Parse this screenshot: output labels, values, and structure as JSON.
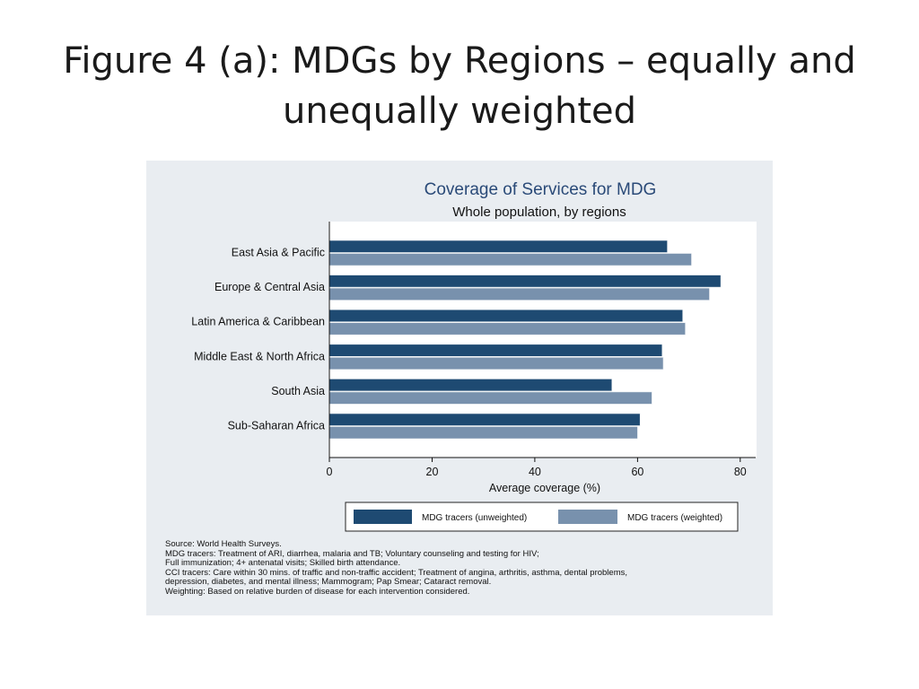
{
  "slide": {
    "title_line1": "Figure 4 (a): MDGs by Regions – equally and",
    "title_line2": "unequally weighted"
  },
  "chart_data": {
    "type": "bar",
    "orientation": "horizontal",
    "title": "Coverage of Services for MDG",
    "subtitle": "Whole population, by regions",
    "categories": [
      "East Asia & Pacific",
      "Europe & Central Asia",
      "Latin America & Caribbean",
      "Middle East & North Africa",
      "South Asia",
      "Sub-Saharan Africa"
    ],
    "series": [
      {
        "name": "MDG tracers (unweighted)",
        "color": "#1e4a72",
        "values": [
          65.8,
          76.2,
          68.8,
          64.8,
          55.0,
          60.5
        ]
      },
      {
        "name": "MDG tracers (weighted)",
        "color": "#7891ad",
        "values": [
          70.5,
          74.0,
          69.3,
          65.0,
          62.8,
          60.0
        ]
      }
    ],
    "xlabel": "Average coverage (%)",
    "xticks": [
      0,
      20,
      40,
      60,
      80
    ],
    "xlim": [
      0,
      83
    ],
    "legend_position": "bottom",
    "grid": false
  },
  "notes": {
    "lines": [
      "Source: World Health Surveys.",
      "MDG tracers: Treatment of ARI, diarrhea, malaria and TB; Voluntary counseling and testing for HIV;",
      "Full immunization; 4+ antenatal visits; Skilled birth attendance.",
      "CCI tracers: Care within 30 mins. of traffic and non-traffic accident; Treatment of angina, arthritis, asthma, dental problems,",
      "depression, diabetes, and mental illness; Mammogram; Pap Smear; Cataract removal.",
      "Weighting: Based on relative burden of disease for each intervention considered."
    ]
  }
}
